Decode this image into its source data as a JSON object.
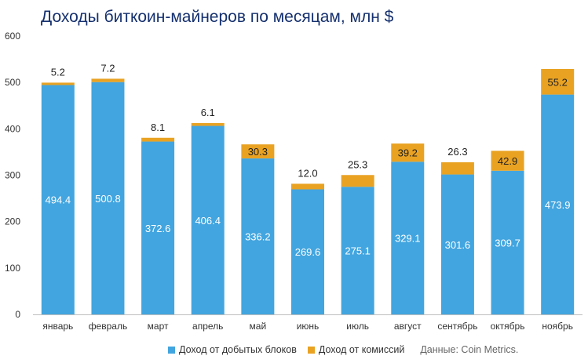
{
  "title": "Доходы биткоин-майнеров по месяцам, млн $",
  "legend": {
    "blocks": "Доход от добытых блоков",
    "fees": "Доход от комиссий",
    "source": "Данные: Coin Metrics."
  },
  "colors": {
    "blocks": "#42a5df",
    "fees": "#e9a222",
    "title": "#15306e"
  },
  "chart_data": {
    "type": "bar",
    "stacked": true,
    "title": "Доходы биткоин-майнеров по месяцам, млн $",
    "categories": [
      "январь",
      "февраль",
      "март",
      "апрель",
      "май",
      "июнь",
      "июль",
      "август",
      "сентябрь",
      "октябрь",
      "ноябрь"
    ],
    "series": [
      {
        "name": "Доход от добытых блоков",
        "values": [
          494.4,
          500.8,
          372.6,
          406.4,
          336.2,
          269.6,
          275.1,
          329.1,
          301.6,
          309.7,
          473.9
        ]
      },
      {
        "name": "Доход от комиссий",
        "values": [
          5.2,
          7.2,
          8.1,
          6.1,
          30.3,
          12.0,
          25.3,
          39.2,
          26.3,
          42.9,
          55.2
        ]
      }
    ],
    "ylim": [
      0,
      600
    ],
    "yticks": [
      0,
      100,
      200,
      300,
      400,
      500,
      600
    ],
    "xlabel": "",
    "ylabel": ""
  }
}
